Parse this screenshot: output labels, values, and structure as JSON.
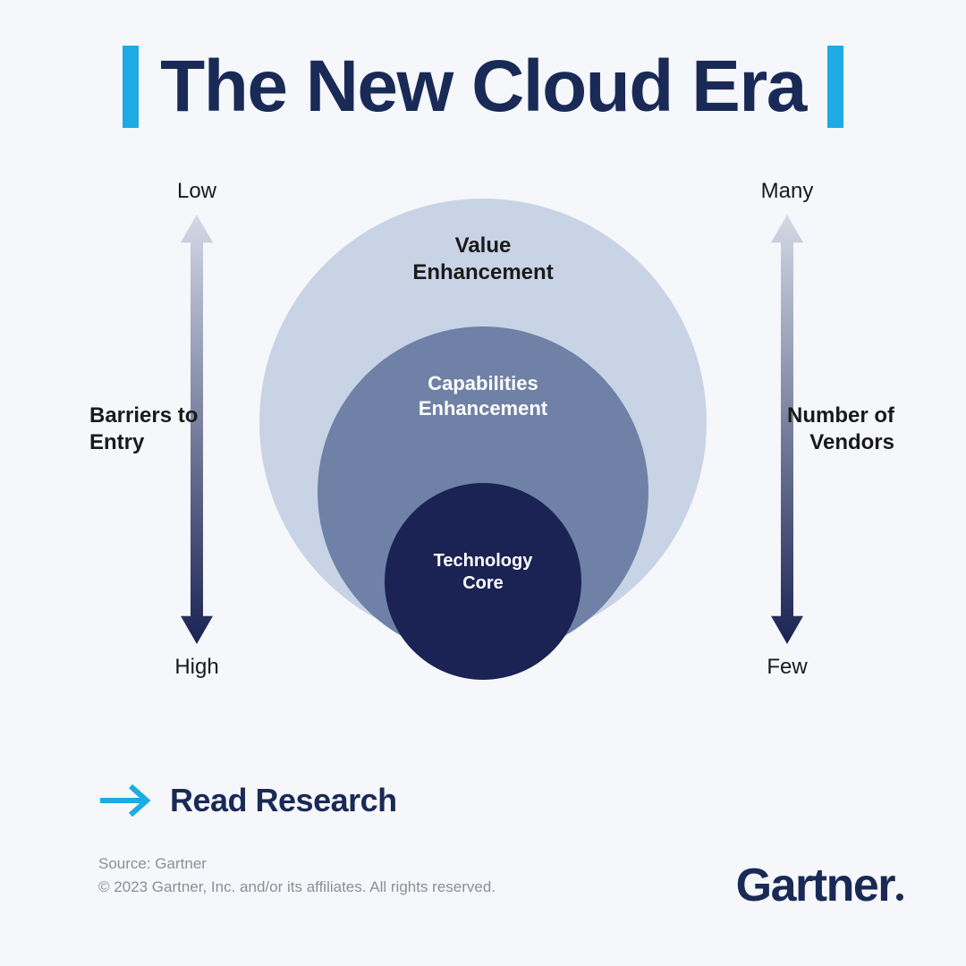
{
  "title": "The New Cloud Era",
  "accent_bar_color": "#1eaae2",
  "title_color": "#1a2a56",
  "background_color": "#f5f7fa",
  "diagram": {
    "type": "concentric-circles",
    "circles": [
      {
        "label": "Value\nEnhancement",
        "diameter": 500,
        "fill": "#c9d3e6",
        "text_color": "#1a1a1a"
      },
      {
        "label": "Capabilities\nEnhancement",
        "diameter": 370,
        "fill": "#6f81a6",
        "text_color": "#ffffff"
      },
      {
        "label": "Technology\nCore",
        "diameter": 220,
        "fill": "#1a2353",
        "text_color": "#ffffff"
      }
    ],
    "left_axis": {
      "title": "Barriers to\nEntry",
      "top_label": "Low",
      "bottom_label": "High",
      "gradient_top": "#d4d9e6",
      "gradient_bottom": "#1a2353"
    },
    "right_axis": {
      "title": "Number of\nVendors",
      "top_label": "Many",
      "bottom_label": "Few",
      "gradient_top": "#d4d9e6",
      "gradient_bottom": "#1a2353"
    }
  },
  "cta": {
    "label": "Read Research",
    "arrow_color": "#1eaae2",
    "text_color": "#1a2a56"
  },
  "attribution": {
    "source_line": "Source: Gartner",
    "copyright_line": "© 2023 Gartner, Inc. and/or its affiliates. All rights reserved."
  },
  "brand": {
    "name": "Gartner",
    "color": "#1a2a56"
  }
}
